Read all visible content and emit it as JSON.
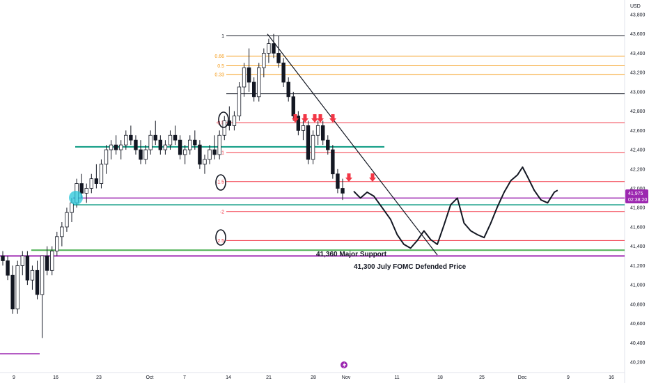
{
  "currency": "USD",
  "chart_data": {
    "type": "candlestick",
    "currency": "USD",
    "ylim": [
      40200,
      43900
    ],
    "y_ticks": [
      43800,
      43600,
      43400,
      43200,
      43000,
      42800,
      42600,
      42400,
      42200,
      42000,
      41800,
      41600,
      41400,
      41200,
      41000,
      40800,
      40600,
      40400,
      40200
    ],
    "y_tick_labels": [
      "43,800",
      "43,600",
      "43,400",
      "43,200",
      "43,000",
      "42,800",
      "42,600",
      "42,400",
      "42,200",
      "42,000",
      "41,800",
      "41,600",
      "41,400",
      "41,200",
      "41,000",
      "40,800",
      "40,600",
      "40,400",
      "40,200"
    ],
    "x_ticks": [
      "9",
      "16",
      "23",
      "Oct",
      "7",
      "14",
      "21",
      "28",
      "Nov",
      "11",
      "18",
      "25",
      "Dec",
      "9",
      "16"
    ],
    "price_label": {
      "value": 41975,
      "text": "41,975",
      "countdown": "02:38:20",
      "color": "#9c27b0"
    },
    "fib_levels": [
      {
        "label": "1",
        "price": 43580,
        "color": "#131722"
      },
      {
        "label": "0.66",
        "price": 43370,
        "color": "#f59c1a"
      },
      {
        "label": "0.5",
        "price": 43270,
        "color": "#f59c1a"
      },
      {
        "label": "0.33",
        "price": 43180,
        "color": "#f59c1a"
      },
      {
        "label": "",
        "price": 42980,
        "color": "#131722"
      },
      {
        "label": "-0.5",
        "price": 42680,
        "color": "#f23645"
      },
      {
        "label": "-1",
        "price": 42370,
        "color": "#f23645"
      },
      {
        "label": "-1.5",
        "price": 42070,
        "color": "#f23645"
      },
      {
        "label": "-2",
        "price": 41760,
        "color": "#f23645"
      },
      {
        "label": "-2.5",
        "price": 41460,
        "color": "#f23645"
      }
    ],
    "levels": [
      {
        "price": 42430,
        "color": "#089981",
        "name": "green-resistance"
      },
      {
        "price": 41900,
        "color": "#9c27b0",
        "name": "purple-upper"
      },
      {
        "price": 41830,
        "color": "#089981",
        "name": "teal-support"
      },
      {
        "price": 41360,
        "color": "#4caf50",
        "name": "major-support"
      },
      {
        "price": 41300,
        "color": "#9c27b0",
        "name": "fomc-defended"
      }
    ],
    "annotations": [
      {
        "text": "41,360 Major Support"
      },
      {
        "text": "41,300   July FOMC Defended Price"
      }
    ],
    "candles_ohlc": [
      [
        41300,
        41350,
        41200,
        41250
      ],
      [
        41250,
        41300,
        41050,
        41100
      ],
      [
        41100,
        41200,
        40700,
        40750
      ],
      [
        40750,
        41250,
        40700,
        41200
      ],
      [
        41200,
        41350,
        41100,
        41300
      ],
      [
        41300,
        41350,
        41000,
        41050
      ],
      [
        41050,
        41200,
        40950,
        41150
      ],
      [
        41150,
        41250,
        40850,
        40900
      ],
      [
        40900,
        41300,
        40450,
        41300
      ],
      [
        41300,
        41400,
        41100,
        41150
      ],
      [
        41150,
        41400,
        41100,
        41350
      ],
      [
        41350,
        41550,
        41300,
        41500
      ],
      [
        41500,
        41650,
        41400,
        41600
      ],
      [
        41600,
        41800,
        41550,
        41750
      ],
      [
        41750,
        41900,
        41650,
        41850
      ],
      [
        41850,
        42100,
        41800,
        42050
      ],
      [
        42050,
        42150,
        41900,
        41950
      ],
      [
        41950,
        42050,
        41850,
        42000
      ],
      [
        42000,
        42150,
        41950,
        42100
      ],
      [
        42100,
        42250,
        42000,
        42050
      ],
      [
        42050,
        42300,
        42000,
        42250
      ],
      [
        42250,
        42450,
        42150,
        42400
      ],
      [
        42400,
        42500,
        42300,
        42450
      ],
      [
        42450,
        42550,
        42350,
        42400
      ],
      [
        42400,
        42500,
        42300,
        42450
      ],
      [
        42450,
        42600,
        42400,
        42550
      ],
      [
        42550,
        42650,
        42450,
        42500
      ],
      [
        42500,
        42550,
        42350,
        42400
      ],
      [
        42400,
        42500,
        42250,
        42300
      ],
      [
        42300,
        42450,
        42250,
        42400
      ],
      [
        42400,
        42600,
        42350,
        42550
      ],
      [
        42550,
        42700,
        42450,
        42500
      ],
      [
        42500,
        42550,
        42350,
        42400
      ],
      [
        42400,
        42500,
        42350,
        42450
      ],
      [
        42450,
        42600,
        42400,
        42550
      ],
      [
        42550,
        42650,
        42450,
        42500
      ],
      [
        42500,
        42550,
        42300,
        42350
      ],
      [
        42350,
        42450,
        42250,
        42400
      ],
      [
        42400,
        42550,
        42350,
        42500
      ],
      [
        42500,
        42600,
        42400,
        42450
      ],
      [
        42450,
        42500,
        42200,
        42250
      ],
      [
        42250,
        42350,
        42150,
        42300
      ],
      [
        42300,
        42450,
        42250,
        42400
      ],
      [
        42400,
        42550,
        42300,
        42350
      ],
      [
        42350,
        42600,
        42300,
        42550
      ],
      [
        42550,
        42750,
        42500,
        42700
      ],
      [
        42700,
        42850,
        42600,
        42650
      ],
      [
        42650,
        42800,
        42600,
        42750
      ],
      [
        42750,
        43100,
        42700,
        43050
      ],
      [
        43050,
        43300,
        42950,
        43250
      ],
      [
        43250,
        43450,
        43000,
        43100
      ],
      [
        43100,
        43150,
        42900,
        42950
      ],
      [
        42950,
        43300,
        42900,
        43250
      ],
      [
        43250,
        43450,
        43150,
        43400
      ],
      [
        43400,
        43550,
        43300,
        43500
      ],
      [
        43500,
        43600,
        43350,
        43400
      ],
      [
        43400,
        43580,
        43250,
        43300
      ],
      [
        43300,
        43350,
        43050,
        43100
      ],
      [
        43100,
        43150,
        42900,
        42950
      ],
      [
        42950,
        43000,
        42700,
        42750
      ],
      [
        42750,
        42800,
        42550,
        42600
      ],
      [
        42600,
        42700,
        42500,
        42650
      ],
      [
        42650,
        42700,
        42250,
        42300
      ],
      [
        42300,
        42600,
        42250,
        42550
      ],
      [
        42550,
        42700,
        42450,
        42650
      ],
      [
        42650,
        42700,
        42450,
        42500
      ],
      [
        42500,
        42550,
        42350,
        42400
      ],
      [
        42400,
        42450,
        42100,
        42150
      ],
      [
        42150,
        42200,
        41950,
        42000
      ],
      [
        42000,
        42100,
        41880,
        41950
      ]
    ],
    "projection": [
      [
        0,
        41970
      ],
      [
        4,
        41900
      ],
      [
        8,
        41960
      ],
      [
        12,
        41920
      ],
      [
        17,
        41800
      ],
      [
        22,
        41680
      ],
      [
        26,
        41520
      ],
      [
        30,
        41420
      ],
      [
        34,
        41380
      ],
      [
        38,
        41460
      ],
      [
        42,
        41560
      ],
      [
        46,
        41470
      ],
      [
        50,
        41420
      ],
      [
        54,
        41620
      ],
      [
        58,
        41830
      ],
      [
        62,
        41900
      ],
      [
        66,
        41640
      ],
      [
        70,
        41560
      ],
      [
        74,
        41520
      ],
      [
        78,
        41490
      ],
      [
        82,
        41640
      ],
      [
        86,
        41810
      ],
      [
        90,
        41960
      ],
      [
        94,
        42080
      ],
      [
        98,
        42140
      ],
      [
        101,
        42220
      ],
      [
        104,
        42120
      ],
      [
        108,
        41980
      ],
      [
        112,
        41880
      ],
      [
        116,
        41850
      ],
      [
        120,
        41960
      ],
      [
        122,
        41980
      ]
    ]
  }
}
